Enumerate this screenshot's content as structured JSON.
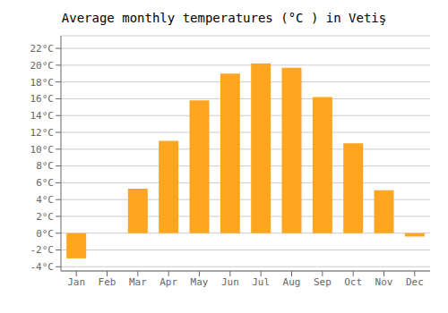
{
  "chart_data": {
    "type": "bar",
    "title": "Average monthly temperatures (°C ) in Vetiş",
    "categories": [
      "Jan",
      "Feb",
      "Mar",
      "Apr",
      "May",
      "Jun",
      "Jul",
      "Aug",
      "Sep",
      "Oct",
      "Nov",
      "Dec"
    ],
    "values": [
      -3.0,
      0.0,
      5.3,
      11.0,
      15.8,
      19.0,
      20.2,
      19.7,
      16.2,
      10.7,
      5.1,
      -0.4
    ],
    "color": "#FFA520",
    "ylim": [
      -4.5,
      23.5
    ],
    "yticks": [
      {
        "value": -4,
        "label": "-4°C"
      },
      {
        "value": -2,
        "label": "-2°C"
      },
      {
        "value": 0,
        "label": "0°C"
      },
      {
        "value": 2,
        "label": "2°C"
      },
      {
        "value": 4,
        "label": "4°C"
      },
      {
        "value": 6,
        "label": "6°C"
      },
      {
        "value": 8,
        "label": "8°C"
      },
      {
        "value": 10,
        "label": "10°C"
      },
      {
        "value": 12,
        "label": "12°C"
      },
      {
        "value": 14,
        "label": "14°C"
      },
      {
        "value": 16,
        "label": "16°C"
      },
      {
        "value": 18,
        "label": "18°C"
      },
      {
        "value": 20,
        "label": "20°C"
      },
      {
        "value": 22,
        "label": "22°C"
      }
    ],
    "grid": true
  }
}
